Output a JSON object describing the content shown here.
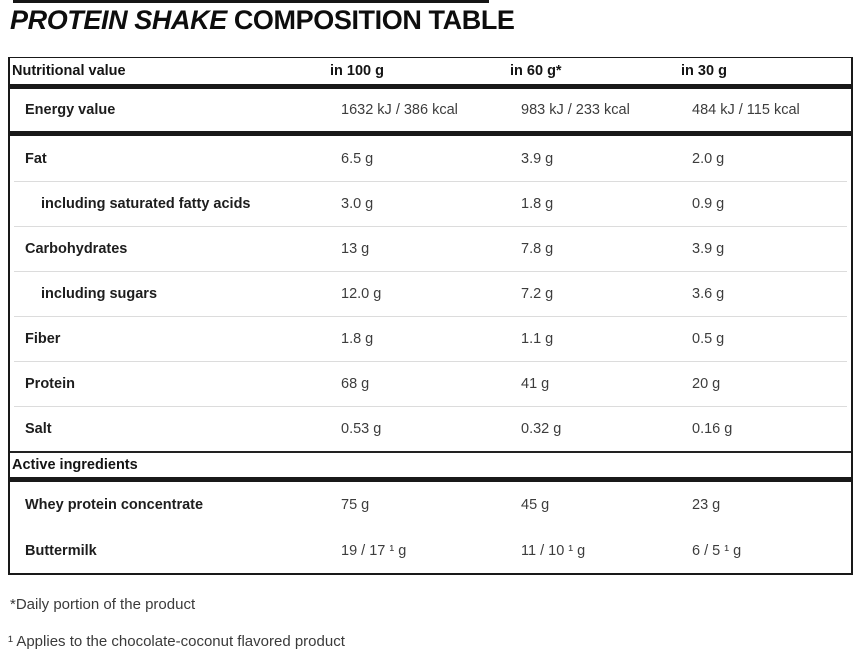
{
  "title": {
    "italic": "PROTEIN SHAKE",
    "regular": "COMPOSITION TABLE"
  },
  "table": {
    "columns": {
      "label": "Nutritional value",
      "c100": "in 100 g",
      "c60": "in 60 g*",
      "c30": "in 30 g"
    },
    "rows": [
      {
        "label": "Energy value",
        "v100": "1632 kJ / 386 kcal",
        "v60": "983 kJ / 233 kcal",
        "v30": "484 kJ / 115 kcal"
      },
      {
        "label": "Fat",
        "v100": "6.5 g",
        "v60": "3.9 g",
        "v30": "2.0 g"
      },
      {
        "label": "including saturated fatty acids",
        "v100": "3.0 g",
        "v60": "1.8 g",
        "v30": "0.9 g"
      },
      {
        "label": "Carbohydrates",
        "v100": "13 g",
        "v60": "7.8 g",
        "v30": "3.9 g"
      },
      {
        "label": "including sugars",
        "v100": "12.0 g",
        "v60": "7.2 g",
        "v30": "3.6 g"
      },
      {
        "label": "Fiber",
        "v100": "1.8 g",
        "v60": "1.1 g",
        "v30": "0.5 g"
      },
      {
        "label": "Protein",
        "v100": "68 g",
        "v60": "41 g",
        "v30": "20 g"
      },
      {
        "label": "Salt",
        "v100": "0.53 g",
        "v60": "0.32 g",
        "v30": "0.16 g"
      }
    ],
    "section": {
      "label": "Active ingredients"
    },
    "active_rows": [
      {
        "label": "Whey protein concentrate",
        "v100": "75 g",
        "v60": "45 g",
        "v30": "23 g"
      },
      {
        "label": "Buttermilk",
        "v100": "19 / 17 ¹ g",
        "v60": "11 / 10 ¹ g",
        "v30": "6 / 5 ¹ g"
      }
    ]
  },
  "footnotes": {
    "daily_portion": "*Daily portion of the product",
    "flavor": "¹ Applies to the chocolate-coconut flavored product"
  },
  "colors": {
    "band": "#191919",
    "separator": "#dcdcdc",
    "label_text": "#1d1d1d",
    "value_text": "#3d3d3d"
  }
}
